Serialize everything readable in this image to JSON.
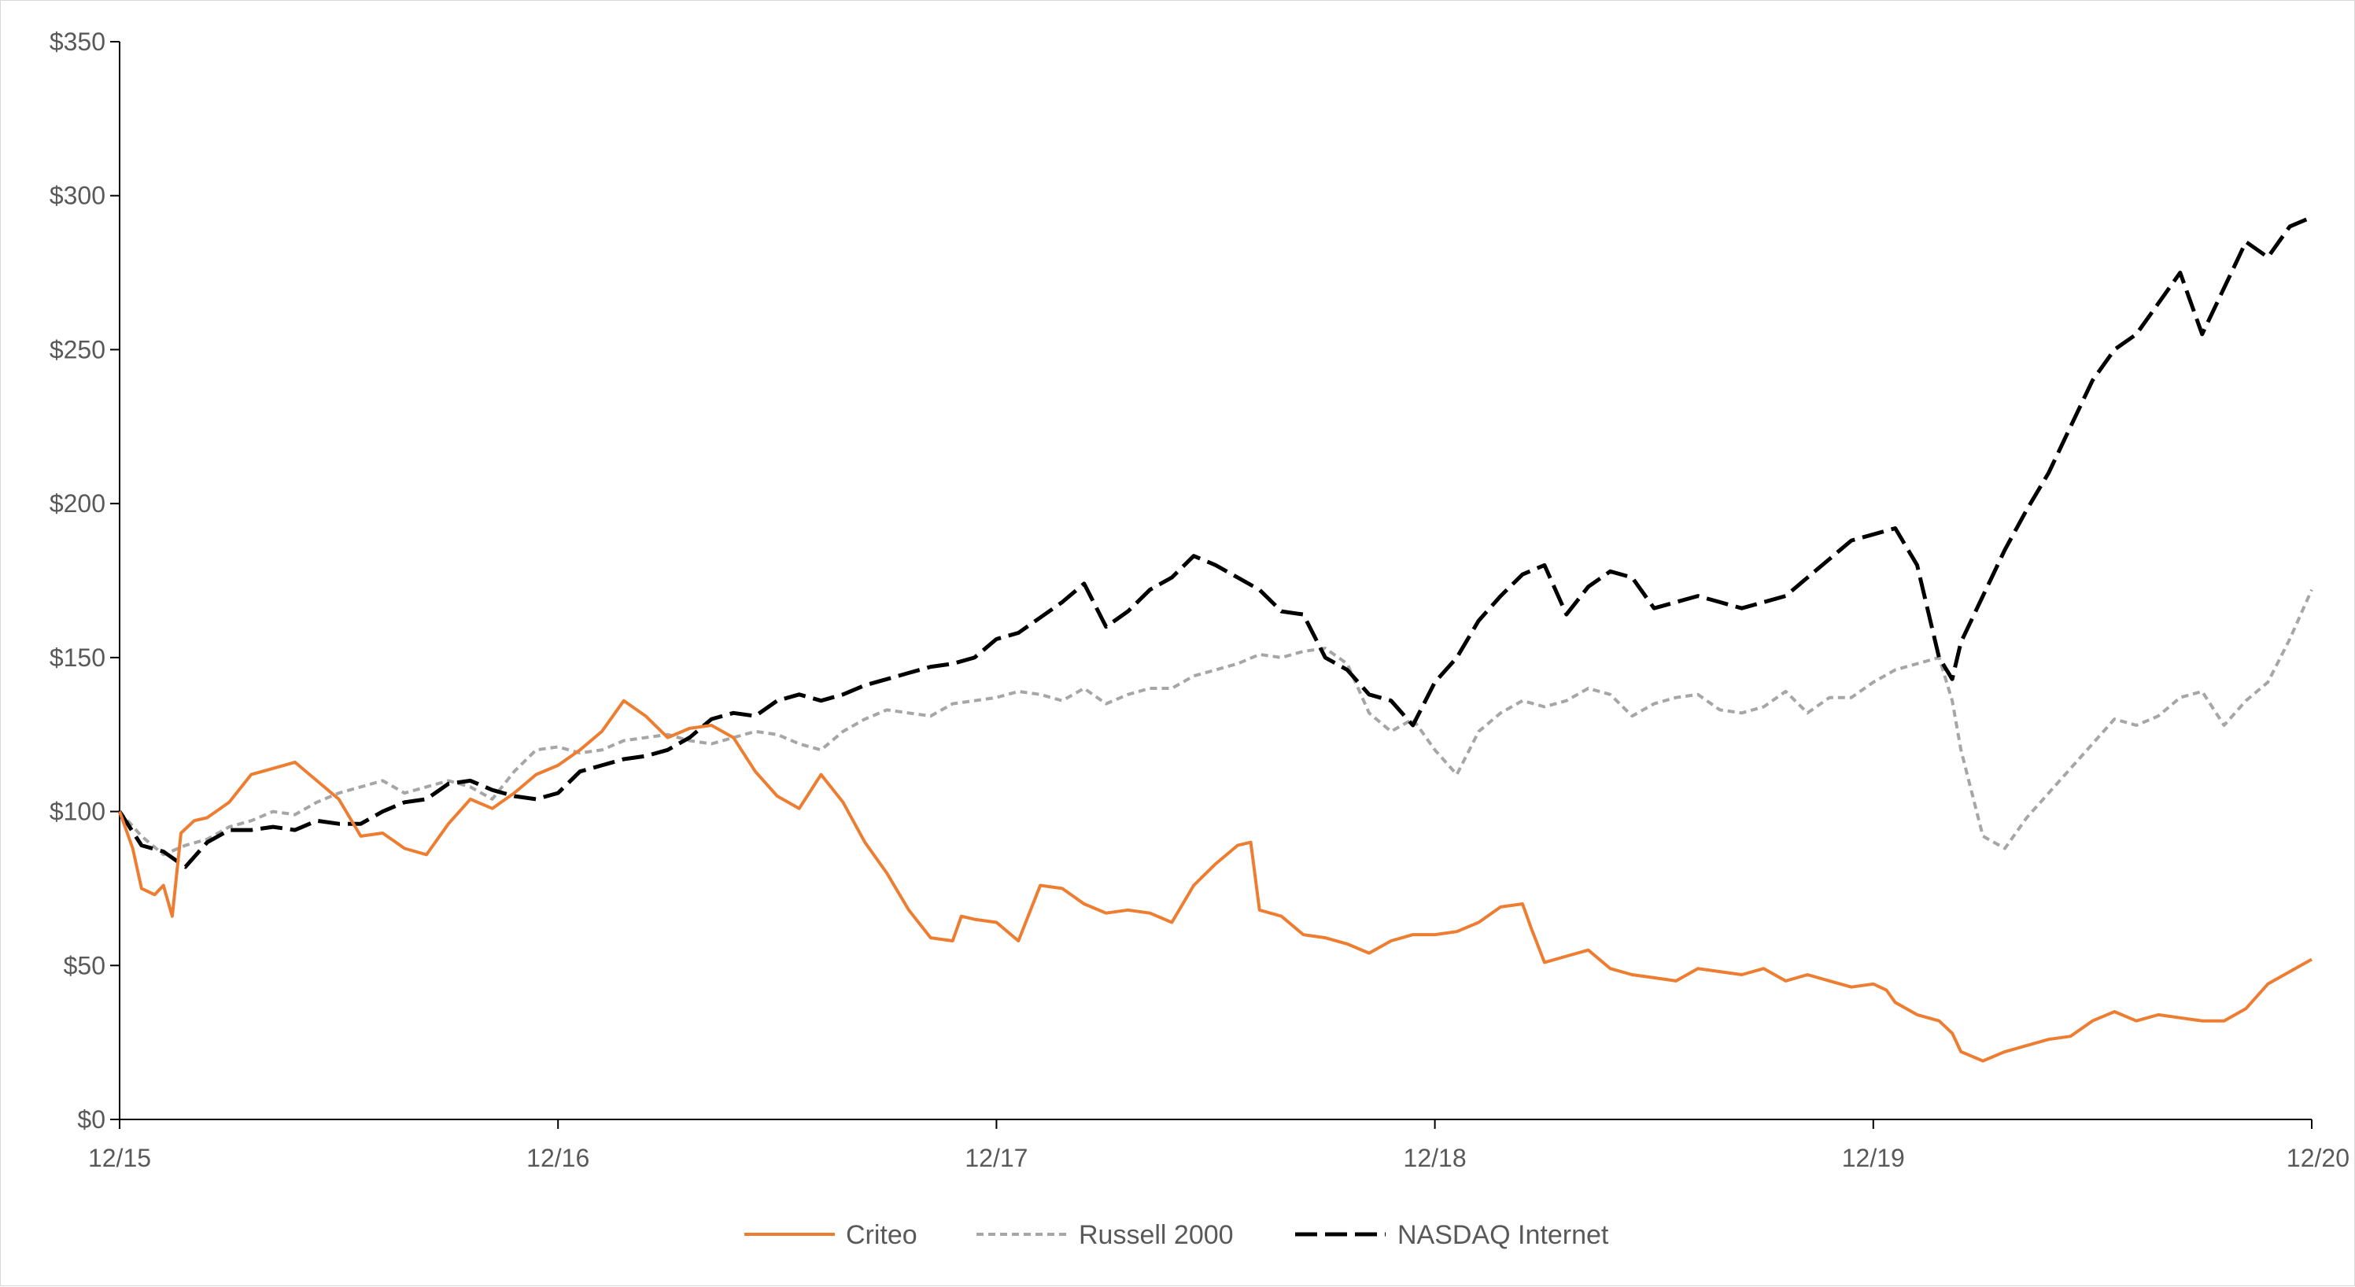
{
  "chart_data": {
    "type": "line",
    "title": "",
    "xlabel": "",
    "ylabel": "",
    "categories": [
      "12/15",
      "12/16",
      "12/17",
      "12/18",
      "12/19",
      "12/20"
    ],
    "x_ticks": [
      "12/15",
      "12/16",
      "12/17",
      "12/18",
      "12/19",
      "12/20"
    ],
    "y_ticks": [
      "$0",
      "$50",
      "$100",
      "$150",
      "$200",
      "$250",
      "$300",
      "$350"
    ],
    "ylim": [
      0,
      350
    ],
    "xlim": [
      0,
      5
    ],
    "grid": false,
    "legend_position": "bottom",
    "series": [
      {
        "name": "Criteo",
        "color": "#ed7d31",
        "dash": "solid",
        "x": [
          0,
          0.03,
          0.05,
          0.08,
          0.1,
          0.12,
          0.14,
          0.17,
          0.2,
          0.25,
          0.3,
          0.35,
          0.4,
          0.45,
          0.5,
          0.55,
          0.6,
          0.65,
          0.7,
          0.75,
          0.8,
          0.85,
          0.9,
          0.95,
          1.0,
          1.05,
          1.1,
          1.15,
          1.2,
          1.25,
          1.3,
          1.35,
          1.4,
          1.45,
          1.5,
          1.55,
          1.6,
          1.65,
          1.7,
          1.75,
          1.8,
          1.85,
          1.9,
          1.92,
          1.95,
          2.0,
          2.05,
          2.1,
          2.15,
          2.2,
          2.25,
          2.3,
          2.35,
          2.4,
          2.45,
          2.5,
          2.55,
          2.58,
          2.6,
          2.65,
          2.7,
          2.75,
          2.8,
          2.85,
          2.9,
          2.95,
          3.0,
          3.05,
          3.1,
          3.15,
          3.2,
          3.22,
          3.25,
          3.3,
          3.35,
          3.4,
          3.45,
          3.5,
          3.55,
          3.6,
          3.65,
          3.7,
          3.75,
          3.8,
          3.85,
          3.9,
          3.95,
          4.0,
          4.03,
          4.05,
          4.1,
          4.15,
          4.18,
          4.2,
          4.25,
          4.3,
          4.35,
          4.4,
          4.45,
          4.5,
          4.55,
          4.6,
          4.65,
          4.7,
          4.75,
          4.8,
          4.85,
          4.9,
          4.95,
          5.0
        ],
        "values": [
          100,
          88,
          75,
          73,
          76,
          66,
          93,
          97,
          98,
          103,
          112,
          114,
          116,
          110,
          104,
          92,
          93,
          88,
          86,
          96,
          104,
          101,
          106,
          112,
          115,
          120,
          126,
          136,
          131,
          124,
          127,
          128,
          124,
          113,
          105,
          101,
          112,
          103,
          90,
          80,
          68,
          59,
          58,
          66,
          65,
          64,
          58,
          76,
          75,
          70,
          67,
          68,
          67,
          64,
          76,
          83,
          89,
          90,
          68,
          66,
          60,
          59,
          57,
          54,
          58,
          60,
          60,
          61,
          64,
          69,
          70,
          62,
          51,
          53,
          55,
          49,
          47,
          46,
          45,
          49,
          48,
          47,
          49,
          45,
          47,
          45,
          43,
          44,
          42,
          38,
          34,
          32,
          28,
          22,
          19,
          22,
          24,
          26,
          27,
          32,
          35,
          32,
          34,
          33,
          32,
          32,
          36,
          44,
          48,
          52
        ]
      },
      {
        "name": "Russell 2000",
        "color": "#a6a6a6",
        "dash": "short",
        "x": [
          0,
          0.05,
          0.1,
          0.15,
          0.2,
          0.25,
          0.3,
          0.35,
          0.4,
          0.45,
          0.5,
          0.55,
          0.6,
          0.65,
          0.7,
          0.75,
          0.8,
          0.85,
          0.9,
          0.95,
          1.0,
          1.05,
          1.1,
          1.15,
          1.2,
          1.25,
          1.3,
          1.35,
          1.4,
          1.45,
          1.5,
          1.55,
          1.6,
          1.65,
          1.7,
          1.75,
          1.8,
          1.85,
          1.9,
          1.95,
          2.0,
          2.05,
          2.1,
          2.15,
          2.2,
          2.25,
          2.3,
          2.35,
          2.4,
          2.45,
          2.5,
          2.55,
          2.6,
          2.65,
          2.7,
          2.75,
          2.8,
          2.85,
          2.9,
          2.95,
          3.0,
          3.05,
          3.1,
          3.15,
          3.2,
          3.25,
          3.3,
          3.35,
          3.4,
          3.45,
          3.5,
          3.55,
          3.6,
          3.65,
          3.7,
          3.75,
          3.8,
          3.85,
          3.9,
          3.95,
          4.0,
          4.05,
          4.1,
          4.15,
          4.18,
          4.2,
          4.25,
          4.3,
          4.35,
          4.4,
          4.45,
          4.5,
          4.55,
          4.6,
          4.65,
          4.7,
          4.75,
          4.8,
          4.85,
          4.9,
          4.95,
          5.0
        ],
        "values": [
          100,
          92,
          86,
          89,
          91,
          95,
          97,
          100,
          99,
          103,
          106,
          108,
          110,
          106,
          108,
          110,
          108,
          104,
          113,
          120,
          121,
          119,
          120,
          123,
          124,
          125,
          123,
          122,
          124,
          126,
          125,
          122,
          120,
          126,
          130,
          133,
          132,
          131,
          135,
          136,
          137,
          139,
          138,
          136,
          140,
          135,
          138,
          140,
          140,
          144,
          146,
          148,
          151,
          150,
          152,
          153,
          148,
          132,
          126,
          130,
          120,
          112,
          126,
          132,
          136,
          134,
          136,
          140,
          138,
          131,
          135,
          137,
          138,
          133,
          132,
          134,
          139,
          132,
          137,
          137,
          142,
          146,
          148,
          150,
          136,
          120,
          92,
          88,
          98,
          106,
          114,
          122,
          130,
          128,
          131,
          137,
          139,
          128,
          136,
          142,
          156,
          172
        ]
      },
      {
        "name": "NASDAQ Internet",
        "color": "#000000",
        "dash": "long",
        "x": [
          0,
          0.05,
          0.1,
          0.15,
          0.2,
          0.25,
          0.3,
          0.35,
          0.4,
          0.45,
          0.5,
          0.55,
          0.6,
          0.65,
          0.7,
          0.75,
          0.8,
          0.85,
          0.9,
          0.95,
          1.0,
          1.05,
          1.1,
          1.15,
          1.2,
          1.25,
          1.3,
          1.35,
          1.4,
          1.45,
          1.5,
          1.55,
          1.6,
          1.65,
          1.7,
          1.75,
          1.8,
          1.85,
          1.9,
          1.95,
          2.0,
          2.05,
          2.1,
          2.15,
          2.2,
          2.25,
          2.3,
          2.35,
          2.4,
          2.45,
          2.5,
          2.55,
          2.6,
          2.65,
          2.7,
          2.75,
          2.8,
          2.85,
          2.9,
          2.95,
          3.0,
          3.05,
          3.1,
          3.15,
          3.2,
          3.25,
          3.3,
          3.35,
          3.4,
          3.45,
          3.5,
          3.55,
          3.6,
          3.65,
          3.7,
          3.75,
          3.8,
          3.85,
          3.9,
          3.95,
          4.0,
          4.05,
          4.1,
          4.15,
          4.18,
          4.2,
          4.25,
          4.3,
          4.35,
          4.4,
          4.45,
          4.5,
          4.55,
          4.6,
          4.65,
          4.7,
          4.75,
          4.8,
          4.85,
          4.9,
          4.95,
          5.0
        ],
        "values": [
          100,
          89,
          87,
          82,
          90,
          94,
          94,
          95,
          94,
          97,
          96,
          96,
          100,
          103,
          104,
          109,
          110,
          107,
          105,
          104,
          106,
          113,
          115,
          117,
          118,
          120,
          124,
          130,
          132,
          131,
          136,
          138,
          136,
          138,
          141,
          143,
          145,
          147,
          148,
          150,
          156,
          158,
          163,
          168,
          174,
          160,
          165,
          172,
          176,
          183,
          180,
          176,
          172,
          165,
          164,
          150,
          146,
          138,
          136,
          128,
          142,
          150,
          162,
          170,
          177,
          180,
          164,
          173,
          178,
          176,
          166,
          168,
          170,
          168,
          166,
          168,
          170,
          176,
          182,
          188,
          190,
          192,
          180,
          150,
          143,
          155,
          170,
          185,
          198,
          210,
          225,
          240,
          250,
          255,
          265,
          275,
          255,
          270,
          285,
          280,
          290,
          293
        ]
      }
    ]
  }
}
